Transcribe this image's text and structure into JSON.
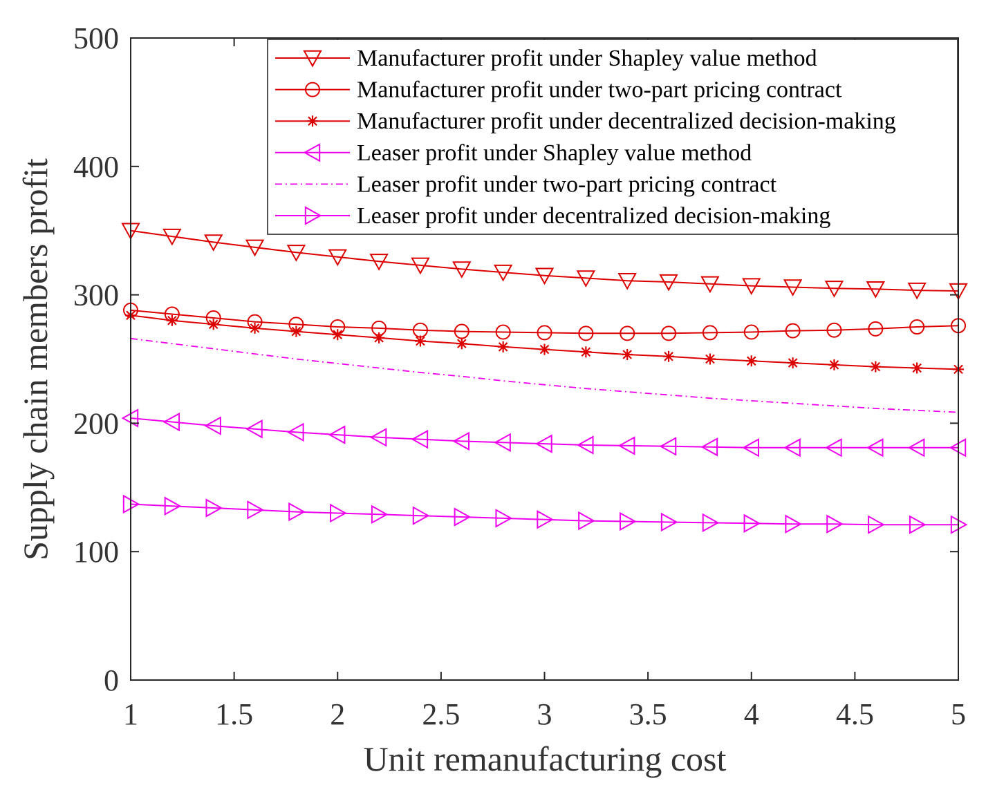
{
  "chart_data": {
    "type": "line",
    "title": "",
    "xlabel": "Unit remanufacturing cost",
    "ylabel": "Supply chain members profit",
    "xlim": [
      1,
      5
    ],
    "ylim": [
      0,
      500
    ],
    "xticks": [
      1,
      1.5,
      2,
      2.5,
      3,
      3.5,
      4,
      4.5,
      5
    ],
    "xtick_labels": [
      "1",
      "1.5",
      "2",
      "2.5",
      "3",
      "3.5",
      "4",
      "4.5",
      "5"
    ],
    "yticks": [
      0,
      100,
      200,
      300,
      400,
      500
    ],
    "ytick_labels": [
      "0",
      "100",
      "200",
      "300",
      "400",
      "500"
    ],
    "grid": false,
    "legend_position": "top-right",
    "x": [
      1,
      1.2,
      1.4,
      1.6,
      1.8,
      2,
      2.2,
      2.4,
      2.6,
      2.8,
      3,
      3.2,
      3.4,
      3.6,
      3.8,
      4,
      4.2,
      4.4,
      4.6,
      4.8,
      5
    ],
    "series": [
      {
        "name": "Manufacturer profit under Shapley value method",
        "color": "#dd0000",
        "marker": "triangle-down",
        "dash": "solid",
        "values": [
          350,
          345.5,
          341,
          337,
          333,
          329.5,
          326,
          323,
          320,
          317.5,
          315,
          313,
          311,
          310,
          308.5,
          307,
          306,
          305,
          304.5,
          303.5,
          303
        ]
      },
      {
        "name": "Manufacturer profit under two-part pricing contract",
        "color": "#dd0000",
        "marker": "circle",
        "dash": "solid",
        "values": [
          288,
          285,
          282,
          279,
          277,
          275,
          274,
          272.5,
          271.5,
          271,
          270.5,
          270,
          270,
          270,
          270.5,
          271,
          272,
          272.5,
          273.5,
          275,
          276
        ]
      },
      {
        "name": "Manufacturer profit under decentralized decision-making",
        "color": "#dd0000",
        "marker": "asterisk",
        "dash": "solid",
        "values": [
          284,
          280,
          277,
          274,
          271.5,
          269,
          266.5,
          264,
          262,
          259.5,
          257.5,
          255.5,
          253.5,
          252,
          250,
          248.5,
          247,
          245.5,
          244,
          243,
          242
        ]
      },
      {
        "name": "Leaser profit under Shapley value method",
        "color": "#ee00ee",
        "marker": "triangle-left",
        "dash": "solid",
        "values": [
          204,
          201,
          198,
          195.5,
          193,
          191,
          189,
          187.5,
          186,
          185,
          184,
          183,
          182.5,
          182,
          181.5,
          181,
          181,
          181,
          181,
          181,
          181
        ]
      },
      {
        "name": "Leaser profit under two-part pricing contract",
        "color": "#ee00ee",
        "marker": "none",
        "dash": "dashdot",
        "values": [
          266,
          262,
          258,
          254,
          250,
          246.5,
          243,
          239.5,
          236.5,
          233,
          230,
          227,
          224.5,
          222,
          219.5,
          217.5,
          215.5,
          213.5,
          211.5,
          210,
          208.5
        ]
      },
      {
        "name": "Leaser profit under decentralized decision-making",
        "color": "#ee00ee",
        "marker": "triangle-right",
        "dash": "solid",
        "values": [
          137,
          135.5,
          134,
          132.5,
          131,
          130,
          129,
          128,
          127,
          126,
          125,
          124,
          123.5,
          123,
          122.5,
          122,
          121.5,
          121.5,
          121,
          121,
          121
        ]
      }
    ]
  }
}
